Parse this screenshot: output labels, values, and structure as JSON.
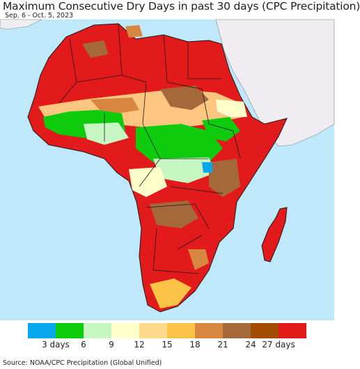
{
  "title": "Maximum Consecutive Dry Days in past 30 days (CPC Precipitation)",
  "subtitle": "Sep. 6 - Oct. 5, 2023",
  "source": "Source: NOAA/CPC Precipitation (Global Unified)",
  "colors": {
    "ocean": "#bfe9fb",
    "outside_land": "#efecf2",
    "border": "#1a1a1a"
  },
  "legend": {
    "colors": [
      "#05a9ec",
      "#0ecb0e",
      "#c6f7c3",
      "#fefecb",
      "#fed98c",
      "#fbc447",
      "#d7873f",
      "#a4683b",
      "#a34b01",
      "#e31a1b"
    ],
    "labels": [
      "3 days",
      "6",
      "9",
      "12",
      "15",
      "18",
      "21",
      "24",
      "27 days"
    ]
  }
}
